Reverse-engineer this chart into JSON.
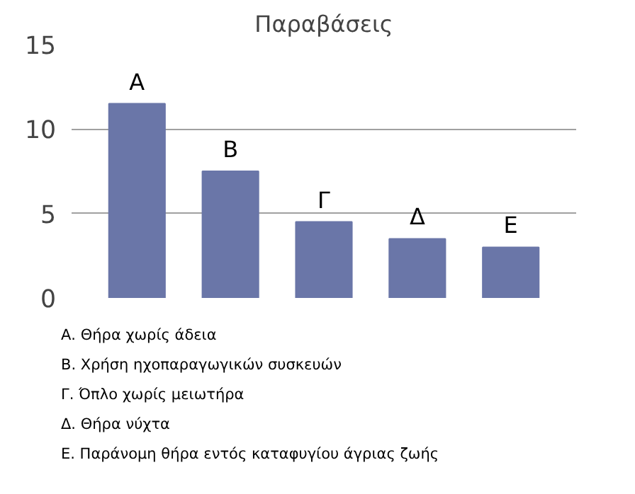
{
  "chart_data": {
    "type": "bar",
    "title": "Παραβάσεις",
    "categories": [
      "Α",
      "Β",
      "Γ",
      "Δ",
      "Ε"
    ],
    "values": [
      11.5,
      7.5,
      4.5,
      3.5,
      3
    ],
    "color": "#6a76a8",
    "ylim": [
      0,
      15
    ],
    "yticks": [
      0,
      5,
      10,
      15
    ],
    "grid": "y",
    "annotations": [
      "Α. Θήρα χωρίς άδεια",
      "Β. Χρήση ηχοπαραγωγικών συσκευών",
      "Γ. Όπλο χωρίς μειωτήρα",
      "Δ. Θήρα νύχτα",
      "Ε. Παράνομη θήρα εντός καταφυγίου άγριας ζωής"
    ]
  }
}
